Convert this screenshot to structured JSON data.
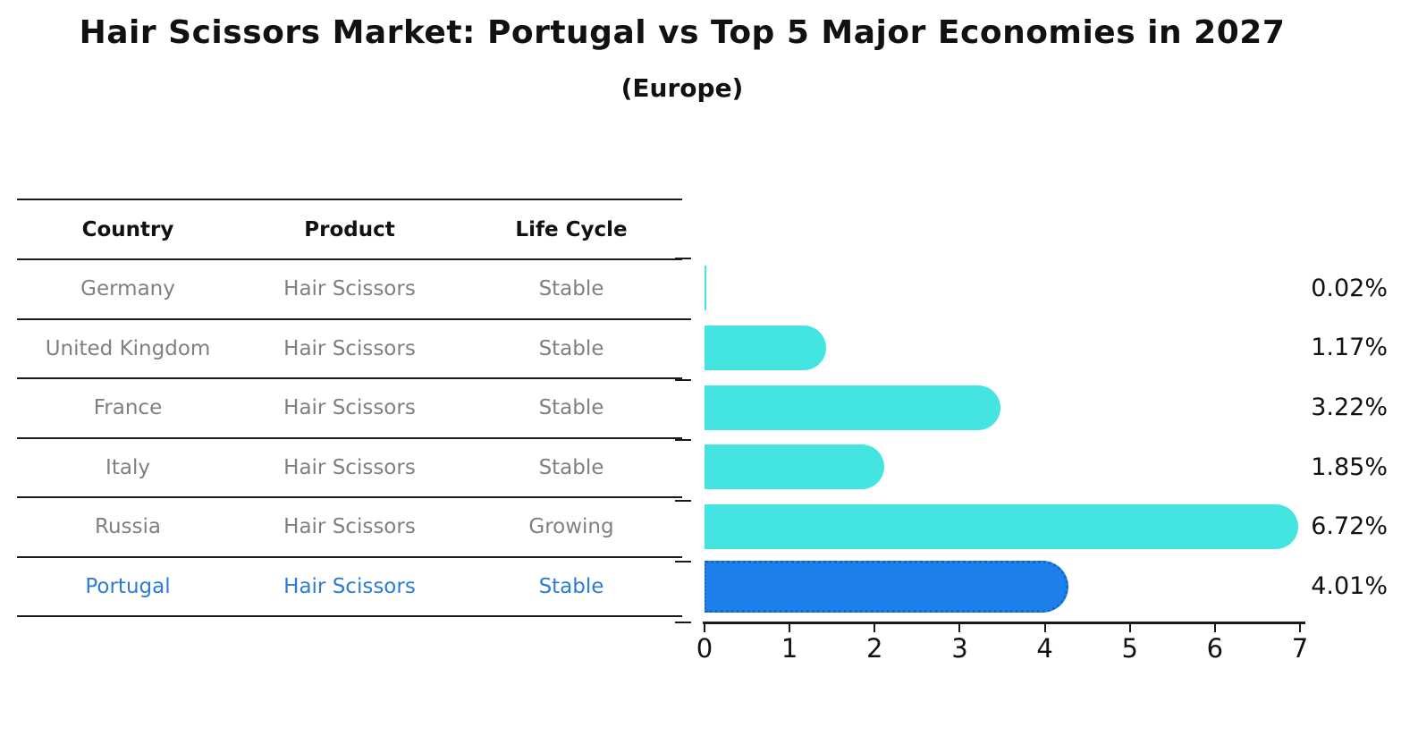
{
  "title": "Hair Scissors Market: Portugal vs Top 5 Major Economies in 2027",
  "subtitle": "(Europe)",
  "table": {
    "headers": [
      "Country",
      "Product",
      "Life Cycle"
    ],
    "rows": [
      {
        "country": "Germany",
        "product": "Hair Scissors",
        "life_cycle": "Stable",
        "highlighted": false
      },
      {
        "country": "United Kingdom",
        "product": "Hair Scissors",
        "life_cycle": "Stable",
        "highlighted": false
      },
      {
        "country": "France",
        "product": "Hair Scissors",
        "life_cycle": "Stable",
        "highlighted": false
      },
      {
        "country": "Italy",
        "product": "Hair Scissors",
        "life_cycle": "Stable",
        "highlighted": false
      },
      {
        "country": "Russia",
        "product": "Hair Scissors",
        "life_cycle": "Growing",
        "highlighted": false
      },
      {
        "country": "Portugal",
        "product": "Hair Scissors",
        "life_cycle": "Stable",
        "highlighted": true
      }
    ]
  },
  "chart_data": {
    "type": "bar",
    "orientation": "horizontal",
    "title": "Hair Scissors Market: Portugal vs Top 5 Major Economies in 2027",
    "subtitle": "(Europe)",
    "categories": [
      "Germany",
      "United Kingdom",
      "France",
      "Italy",
      "Russia",
      "Portugal"
    ],
    "values": [
      0.02,
      1.17,
      3.22,
      1.85,
      6.72,
      4.01
    ],
    "value_labels": [
      "0.02%",
      "1.17%",
      "3.22%",
      "1.85%",
      "6.72%",
      "4.01%"
    ],
    "xlim": [
      0,
      7
    ],
    "x_ticks": [
      0,
      1,
      2,
      3,
      4,
      5,
      6,
      7
    ],
    "grid": false,
    "legend": false,
    "highlight_index": 5,
    "colors": {
      "bar": "#44E5E0",
      "highlight_bar": "#1E80EA",
      "highlight_border": "#1566CB",
      "axis": "#1a1a1a",
      "value_label": "#111111"
    }
  },
  "styles": {
    "background": "#ffffff",
    "table_text": "#808080",
    "header_text": "#111111",
    "highlight_text": "#2B7CD6",
    "line": "#1a1a1a"
  }
}
